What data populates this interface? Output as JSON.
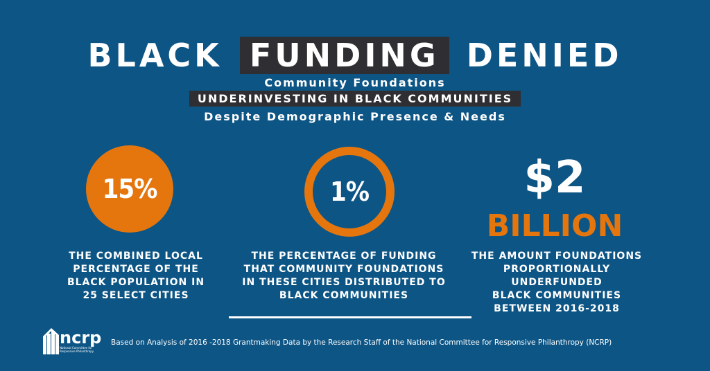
{
  "title": {
    "part1": "BLACK",
    "highlight": "FUNDING",
    "part2": "DENIED"
  },
  "subtitle_1": "Community Foundations",
  "subtitle_2": "UNDERINVESTING IN BLACK COMMUNITIES",
  "subtitle_3": "Despite Demographic Presence & Needs",
  "stats": [
    {
      "value": "15%",
      "description": "THE COMBINED LOCAL\nPERCENTAGE OF THE\nBLACK POPULATION IN\n25 SELECT CITIES"
    },
    {
      "value": "1%",
      "description": "THE PERCENTAGE OF FUNDING\nTHAT COMMUNITY FOUNDATIONS\nIN THESE CITIES DISTRIBUTED TO\nBLACK COMMUNITIES"
    },
    {
      "value": "$2",
      "unit": "BILLION",
      "description": "THE AMOUNT FOUNDATIONS\nPROPORTIONALLY UNDERFUNDED\nBLACK COMMUNITIES\nBETWEEN 2016-2018"
    }
  ],
  "logo": {
    "text": "ncrp",
    "tagline": "National Committee for Responsive Philanthropy"
  },
  "footer": "Based on Analysis of  2016 -2018 Grantmaking Data by the Research Staff of the National Committee for Responsive Philanthropy (NCRP)",
  "colors": {
    "background": "#0d5585",
    "accent": "#e5760e",
    "highlight": "#2f2f33"
  }
}
